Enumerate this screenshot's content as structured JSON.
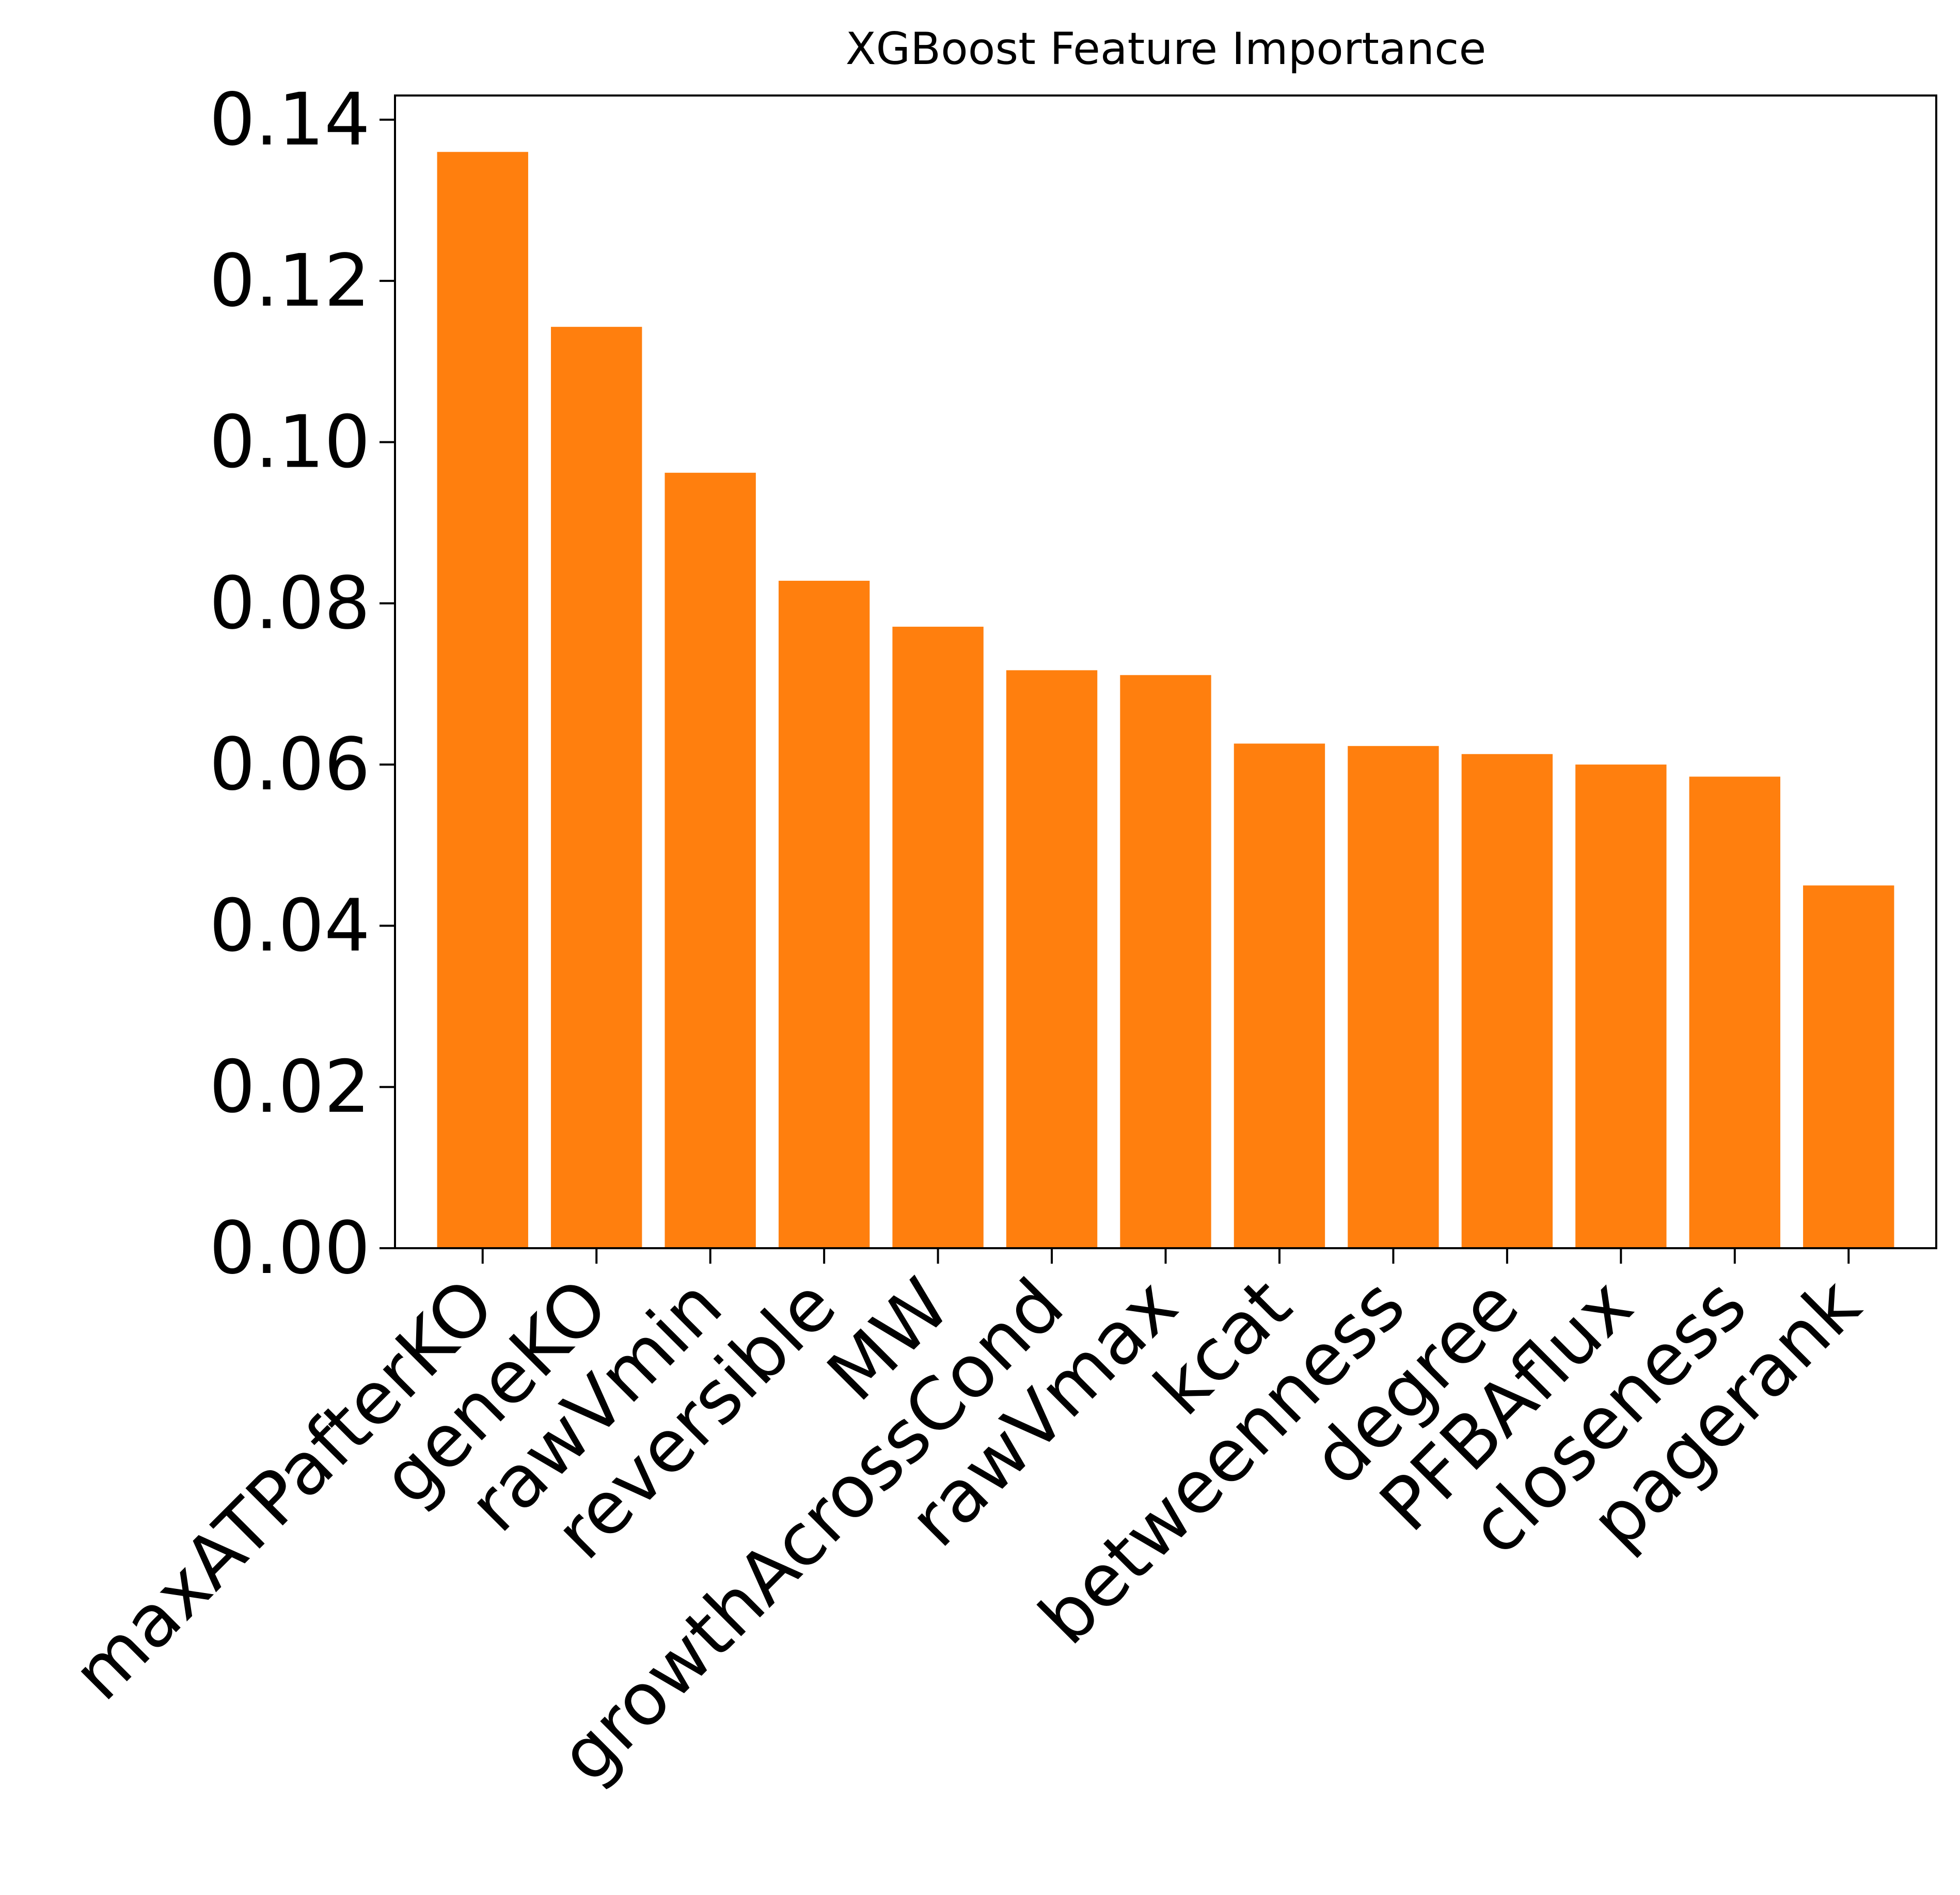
{
  "chart_data": {
    "type": "bar",
    "title": "XGBoost Feature Importance",
    "xlabel": "",
    "ylabel": "",
    "categories": [
      "maxATPafterKO",
      "geneKO",
      "rawVmin",
      "reversible",
      "MW",
      "growthAcrossCond",
      "rawVmax",
      "kcat",
      "betweenness",
      "degree",
      "PFBAflux",
      "closeness",
      "pagerank"
    ],
    "values": [
      0.136,
      0.1143,
      0.0962,
      0.0828,
      0.0771,
      0.0717,
      0.0711,
      0.0626,
      0.0623,
      0.0613,
      0.06,
      0.0585,
      0.045
    ],
    "ylim": [
      0,
      0.143
    ],
    "yticks": [
      "0.00",
      "0.02",
      "0.04",
      "0.06",
      "0.08",
      "0.10",
      "0.12",
      "0.14"
    ],
    "ytick_values": [
      0,
      0.02,
      0.04,
      0.06,
      0.08,
      0.1,
      0.12,
      0.14
    ],
    "grid": false,
    "bar_color": "#ff7f0e",
    "axis_color": "#000000"
  }
}
